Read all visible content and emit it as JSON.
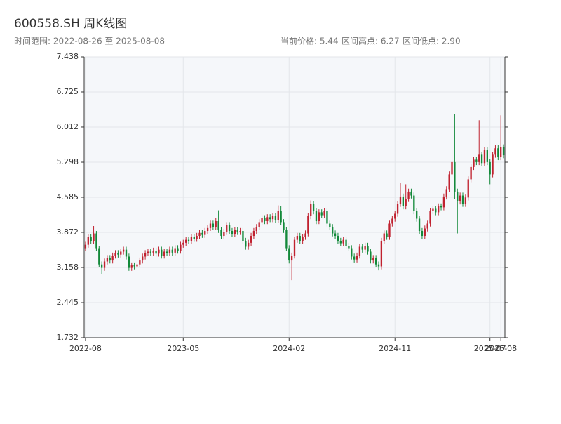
{
  "chart_data": {
    "type": "candlestick",
    "title": "600558.SH 周K线图",
    "subtitle": "时间范围: 2022-08-26 至 2025-08-08",
    "info": [
      "当前价格: 5.44",
      "区间高点: 6.27",
      "区间低点: 2.90"
    ],
    "up_color": "#c0212f",
    "down_color": "#13893a",
    "x": [
      "2022-08",
      "2022-09",
      "2022-09",
      "2022-09",
      "2022-09",
      "2022-09",
      "2022-10",
      "2022-10",
      "2022-10",
      "2022-10",
      "2022-11",
      "2022-11",
      "2022-11",
      "2022-11",
      "2022-12",
      "2022-12",
      "2022-12",
      "2022-12",
      "2022-12",
      "2023-01",
      "2023-01",
      "2023-01",
      "2023-01",
      "2023-02",
      "2023-02",
      "2023-02",
      "2023-02",
      "2023-03",
      "2023-03",
      "2023-03",
      "2023-03",
      "2023-03",
      "2023-04",
      "2023-04",
      "2023-04",
      "2023-04",
      "2023-05",
      "2023-05",
      "2023-05",
      "2023-05",
      "2023-06",
      "2023-06",
      "2023-06",
      "2023-06",
      "2023-06",
      "2023-07",
      "2023-07",
      "2023-07",
      "2023-07",
      "2023-08",
      "2023-08",
      "2023-08",
      "2023-08",
      "2023-09",
      "2023-09",
      "2023-09",
      "2023-09",
      "2023-09",
      "2023-10",
      "2023-10",
      "2023-10",
      "2023-10",
      "2023-11",
      "2023-11",
      "2023-11",
      "2023-11",
      "2023-12",
      "2023-12",
      "2023-12",
      "2023-12",
      "2023-12",
      "2024-01",
      "2024-01",
      "2024-01",
      "2024-01",
      "2024-02",
      "2024-02",
      "2024-02",
      "2024-02",
      "2024-03",
      "2024-03",
      "2024-03",
      "2024-03",
      "2024-03",
      "2024-04",
      "2024-04",
      "2024-04",
      "2024-04",
      "2024-05",
      "2024-05",
      "2024-05",
      "2024-05",
      "2024-05",
      "2024-06",
      "2024-06",
      "2024-06",
      "2024-06",
      "2024-07",
      "2024-07",
      "2024-07",
      "2024-07",
      "2024-08",
      "2024-08",
      "2024-08",
      "2024-08",
      "2024-08",
      "2024-09",
      "2024-09",
      "2024-09",
      "2024-09",
      "2024-10",
      "2024-10",
      "2024-10",
      "2024-10",
      "2024-11",
      "2024-11",
      "2024-11",
      "2024-11",
      "2024-11",
      "2024-12",
      "2024-12",
      "2024-12",
      "2024-12",
      "2025-01",
      "2025-01",
      "2025-01",
      "2025-01",
      "2025-01",
      "2025-02",
      "2025-02",
      "2025-02",
      "2025-02",
      "2025-03",
      "2025-03",
      "2025-03",
      "2025-03",
      "2025-04",
      "2025-04",
      "2025-04",
      "2025-04",
      "2025-05",
      "2025-05",
      "2025-05",
      "2025-05",
      "2025-05",
      "2025-06",
      "2025-06",
      "2025-06",
      "2025-06",
      "2025-07",
      "2025-07",
      "2025-07",
      "2025-07",
      "2025-08",
      "2025-08"
    ],
    "open": [
      3.55,
      3.62,
      3.78,
      3.7,
      3.85,
      3.55,
      3.22,
      3.15,
      3.28,
      3.35,
      3.3,
      3.4,
      3.45,
      3.42,
      3.48,
      3.52,
      3.38,
      3.15,
      3.2,
      3.18,
      3.22,
      3.3,
      3.38,
      3.45,
      3.48,
      3.46,
      3.5,
      3.44,
      3.52,
      3.4,
      3.48,
      3.45,
      3.52,
      3.46,
      3.55,
      3.5,
      3.62,
      3.66,
      3.72,
      3.7,
      3.78,
      3.74,
      3.8,
      3.86,
      3.82,
      3.9,
      3.96,
      4.05,
      3.98,
      4.1,
      3.92,
      3.8,
      3.88,
      4.02,
      3.9,
      3.84,
      3.92,
      3.88,
      3.9,
      3.7,
      3.58,
      3.66,
      3.8,
      3.9,
      3.98,
      4.08,
      4.16,
      4.1,
      4.18,
      4.14,
      4.2,
      4.12,
      4.3,
      4.08,
      3.92,
      3.55,
      3.3,
      3.4,
      3.72,
      3.8,
      3.7,
      3.78,
      3.85,
      4.2,
      4.45,
      4.3,
      4.1,
      4.28,
      4.22,
      4.3,
      4.05,
      3.98,
      3.85,
      3.8,
      3.7,
      3.65,
      3.72,
      3.6,
      3.55,
      3.38,
      3.32,
      3.4,
      3.58,
      3.52,
      3.6,
      3.48,
      3.3,
      3.35,
      3.22,
      3.18,
      3.7,
      3.85,
      3.78,
      4.05,
      4.15,
      4.25,
      4.45,
      4.6,
      4.4,
      4.55,
      4.7,
      4.62,
      4.3,
      4.15,
      3.9,
      3.8,
      3.95,
      4.05,
      4.3,
      4.35,
      4.28,
      4.4,
      4.38,
      4.6,
      4.75,
      5.05,
      5.3,
      4.7,
      4.5,
      4.62,
      4.45,
      4.58,
      4.95,
      5.2,
      5.35,
      5.3,
      5.45,
      5.28,
      5.55,
      5.3,
      5.05,
      5.45,
      5.58,
      5.4,
      5.6
    ],
    "high": [
      3.68,
      3.84,
      3.84,
      4.0,
      3.9,
      3.6,
      3.28,
      3.34,
      3.41,
      3.41,
      3.46,
      3.51,
      3.51,
      3.54,
      3.58,
      3.58,
      3.44,
      3.26,
      3.26,
      3.28,
      3.36,
      3.44,
      3.51,
      3.54,
      3.54,
      3.56,
      3.56,
      3.58,
      3.58,
      3.54,
      3.54,
      3.58,
      3.58,
      3.61,
      3.61,
      3.68,
      3.72,
      3.78,
      3.78,
      3.84,
      3.84,
      3.86,
      3.92,
      3.92,
      3.96,
      4.02,
      4.11,
      4.11,
      4.16,
      4.32,
      3.98,
      3.94,
      4.08,
      4.08,
      3.96,
      3.98,
      3.98,
      3.96,
      3.96,
      3.76,
      3.72,
      3.86,
      3.96,
      4.04,
      4.14,
      4.22,
      4.22,
      4.24,
      4.24,
      4.26,
      4.26,
      4.42,
      4.4,
      4.14,
      3.98,
      3.61,
      3.46,
      3.78,
      3.86,
      3.86,
      3.84,
      3.91,
      4.26,
      4.52,
      4.51,
      4.36,
      4.34,
      4.34,
      4.36,
      4.36,
      4.11,
      4.04,
      3.91,
      3.86,
      3.76,
      3.78,
      3.78,
      3.66,
      3.61,
      3.44,
      3.46,
      3.64,
      3.64,
      3.66,
      3.66,
      3.54,
      3.41,
      3.41,
      3.28,
      3.76,
      3.91,
      3.91,
      4.11,
      4.21,
      4.31,
      4.51,
      4.88,
      4.66,
      4.85,
      4.76,
      4.76,
      4.68,
      4.36,
      4.21,
      3.96,
      4.01,
      4.11,
      4.36,
      4.41,
      4.41,
      4.46,
      4.46,
      4.66,
      4.81,
      5.11,
      5.55,
      6.27,
      4.76,
      4.68,
      4.68,
      4.64,
      5.01,
      5.26,
      5.41,
      5.41,
      6.15,
      5.51,
      5.61,
      5.61,
      5.36,
      5.51,
      5.64,
      5.64,
      6.25,
      5.66
    ],
    "low": [
      3.49,
      3.56,
      3.64,
      3.64,
      3.49,
      3.16,
      3.02,
      3.09,
      3.22,
      3.24,
      3.24,
      3.34,
      3.36,
      3.36,
      3.42,
      3.32,
      3.09,
      3.09,
      3.12,
      3.12,
      3.16,
      3.24,
      3.32,
      3.39,
      3.4,
      3.4,
      3.38,
      3.38,
      3.34,
      3.34,
      3.39,
      3.39,
      3.4,
      3.4,
      3.44,
      3.44,
      3.56,
      3.6,
      3.64,
      3.64,
      3.68,
      3.68,
      3.74,
      3.76,
      3.76,
      3.84,
      3.9,
      3.92,
      3.92,
      3.86,
      3.74,
      3.74,
      3.82,
      3.84,
      3.78,
      3.78,
      3.82,
      3.82,
      3.64,
      3.52,
      3.52,
      3.6,
      3.74,
      3.84,
      3.92,
      4.02,
      4.04,
      4.04,
      4.08,
      4.08,
      4.06,
      4.06,
      4.02,
      3.86,
      3.49,
      3.24,
      2.9,
      3.34,
      3.66,
      3.64,
      3.64,
      3.72,
      3.79,
      4.14,
      4.24,
      4.04,
      4.04,
      4.16,
      4.16,
      3.99,
      3.92,
      3.79,
      3.74,
      3.64,
      3.59,
      3.59,
      3.54,
      3.49,
      3.32,
      3.26,
      3.26,
      3.34,
      3.46,
      3.46,
      3.42,
      3.24,
      3.24,
      3.16,
      3.1,
      3.12,
      3.64,
      3.72,
      3.72,
      3.99,
      4.09,
      4.19,
      4.39,
      4.34,
      4.34,
      4.49,
      4.56,
      4.24,
      4.09,
      3.84,
      3.74,
      3.74,
      3.89,
      3.99,
      4.24,
      4.22,
      4.22,
      4.32,
      4.32,
      4.54,
      4.69,
      4.99,
      4.55,
      3.85,
      4.44,
      4.39,
      4.39,
      4.52,
      4.89,
      5.14,
      5.24,
      5.24,
      5.22,
      5.22,
      5.24,
      4.85,
      4.99,
      5.39,
      5.34,
      5.34,
      5.38
    ],
    "close": [
      3.62,
      3.78,
      3.7,
      3.85,
      3.55,
      3.22,
      3.15,
      3.28,
      3.35,
      3.3,
      3.4,
      3.45,
      3.42,
      3.48,
      3.52,
      3.38,
      3.15,
      3.2,
      3.18,
      3.22,
      3.3,
      3.38,
      3.45,
      3.48,
      3.46,
      3.5,
      3.44,
      3.52,
      3.4,
      3.48,
      3.45,
      3.52,
      3.46,
      3.55,
      3.5,
      3.62,
      3.66,
      3.72,
      3.7,
      3.78,
      3.74,
      3.8,
      3.86,
      3.82,
      3.9,
      3.96,
      4.05,
      3.98,
      4.1,
      3.92,
      3.8,
      3.88,
      4.02,
      3.9,
      3.84,
      3.92,
      3.88,
      3.9,
      3.7,
      3.58,
      3.66,
      3.8,
      3.9,
      3.98,
      4.08,
      4.16,
      4.1,
      4.18,
      4.14,
      4.2,
      4.12,
      4.3,
      4.08,
      3.92,
      3.55,
      3.3,
      3.4,
      3.72,
      3.8,
      3.7,
      3.78,
      3.85,
      4.2,
      4.45,
      4.3,
      4.1,
      4.28,
      4.22,
      4.3,
      4.05,
      3.98,
      3.85,
      3.8,
      3.7,
      3.65,
      3.72,
      3.6,
      3.55,
      3.38,
      3.32,
      3.4,
      3.58,
      3.52,
      3.6,
      3.48,
      3.3,
      3.35,
      3.22,
      3.18,
      3.7,
      3.85,
      3.78,
      4.05,
      4.15,
      4.25,
      4.45,
      4.6,
      4.4,
      4.55,
      4.7,
      4.62,
      4.3,
      4.15,
      3.9,
      3.8,
      3.95,
      4.05,
      4.3,
      4.35,
      4.28,
      4.4,
      4.38,
      4.6,
      4.75,
      5.05,
      5.3,
      4.7,
      4.5,
      4.62,
      4.45,
      4.58,
      4.95,
      5.2,
      5.35,
      5.3,
      5.45,
      5.28,
      5.55,
      5.3,
      5.05,
      5.45,
      5.58,
      5.4,
      5.6,
      5.44
    ],
    "xticks": [
      "2022-08",
      "2023-05",
      "2024-02",
      "2024-11",
      "2025-07",
      "2025-08"
    ],
    "ylim": [
      1.732,
      7.438
    ],
    "yticks": [
      1.732,
      2.445,
      3.158,
      3.872,
      4.585,
      5.298,
      6.012,
      6.725,
      7.438
    ],
    "grid": true
  }
}
